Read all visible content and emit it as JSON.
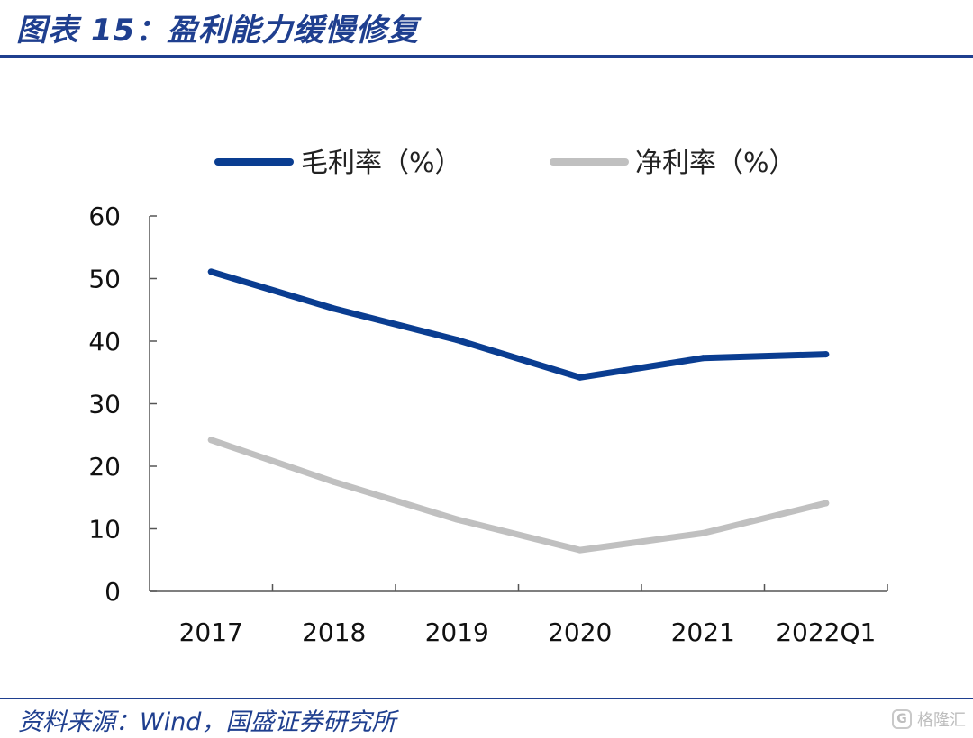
{
  "header": {
    "title": "图表 15：盈利能力缓慢修复"
  },
  "footer": {
    "source": "资料来源：Wind，国盛证券研究所"
  },
  "watermark": {
    "icon": "G",
    "text": "格隆汇"
  },
  "chart_data": {
    "type": "line",
    "title": "",
    "xlabel": "",
    "ylabel": "",
    "categories": [
      "2017",
      "2018",
      "2019",
      "2020",
      "2021",
      "2022Q1"
    ],
    "ylim": [
      0,
      60
    ],
    "yticks": [
      0,
      10,
      20,
      30,
      40,
      50,
      60
    ],
    "grid": false,
    "legend_position": "top",
    "series": [
      {
        "name": "毛利率（%）",
        "color": "#0a3d91",
        "values": [
          51.1,
          45.2,
          40.2,
          34.2,
          37.3,
          37.9
        ]
      },
      {
        "name": "净利率（%）",
        "color": "#c0c0c0",
        "values": [
          24.2,
          17.5,
          11.5,
          6.6,
          9.3,
          14.1
        ]
      }
    ]
  }
}
